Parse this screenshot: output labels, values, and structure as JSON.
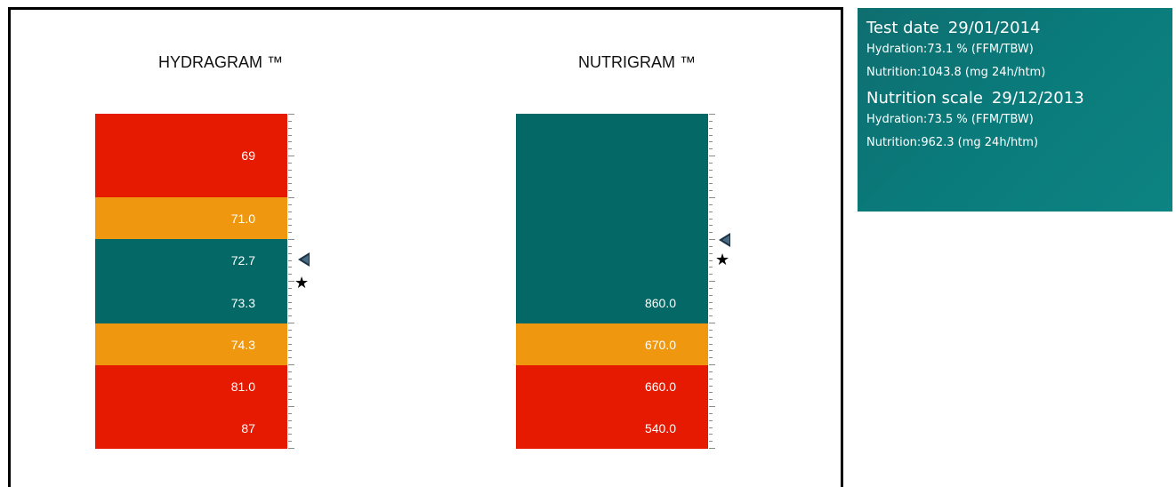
{
  "colors": {
    "red": "#e61a00",
    "orange": "#ef970f",
    "teal": "#046866",
    "panel": "#0a7b7b"
  },
  "chart_data": [
    {
      "type": "gauge",
      "title": "HYDRAGRAM ™",
      "bands": [
        {
          "color": "red",
          "label": "69",
          "from": 0.0,
          "to": 0.25
        },
        {
          "color": "orange",
          "label": "71.0",
          "from": 0.25,
          "to": 0.375
        },
        {
          "color": "teal",
          "label": "72.7",
          "from": 0.375,
          "to": 0.5
        },
        {
          "color": "teal",
          "label": "73.3",
          "from": 0.5,
          "to": 0.625
        },
        {
          "color": "orange",
          "label": "74.3",
          "from": 0.625,
          "to": 0.75
        },
        {
          "color": "red",
          "label": "81.0",
          "from": 0.75,
          "to": 0.875
        },
        {
          "color": "red",
          "label": "87",
          "from": 0.875,
          "to": 1.0
        }
      ],
      "markers": {
        "arrow_value": 73.5,
        "star_value": 73.1
      },
      "marker_levels": {
        "arrow": 0.435,
        "star": 0.505
      }
    },
    {
      "type": "gauge",
      "title": "NUTRIGRAM ™",
      "bands": [
        {
          "color": "teal",
          "label": "",
          "from": 0.0,
          "to": 0.25
        },
        {
          "color": "teal",
          "label": "",
          "from": 0.25,
          "to": 0.375
        },
        {
          "color": "teal",
          "label": "",
          "from": 0.375,
          "to": 0.5
        },
        {
          "color": "teal",
          "label": "860.0",
          "from": 0.5,
          "to": 0.625
        },
        {
          "color": "orange",
          "label": "670.0",
          "from": 0.625,
          "to": 0.75
        },
        {
          "color": "red",
          "label": "660.0",
          "from": 0.75,
          "to": 0.875
        },
        {
          "color": "red",
          "label": "540.0",
          "from": 0.875,
          "to": 1.0
        }
      ],
      "markers": {
        "arrow_value": 962.3,
        "star_value": 1043.8
      },
      "marker_levels": {
        "arrow": 0.377,
        "star": 0.435
      }
    }
  ],
  "panel": {
    "test_date_label": "Test date",
    "test_date": "29/01/2014",
    "test_hydration_label": "Hydration:",
    "test_hydration_value": "73.1 % (FFM/TBW)",
    "test_nutrition_label": "Nutrition:",
    "test_nutrition_value": "1043.8 (mg 24h/htm)",
    "scale_label": "Nutrition scale",
    "scale_date": "29/12/2013",
    "scale_hydration_label": "Hydration:",
    "scale_hydration_value": "73.5 % (FFM/TBW)",
    "scale_nutrition_label": "Nutrition:",
    "scale_nutrition_value": "962.3 (mg 24h/htm)"
  }
}
